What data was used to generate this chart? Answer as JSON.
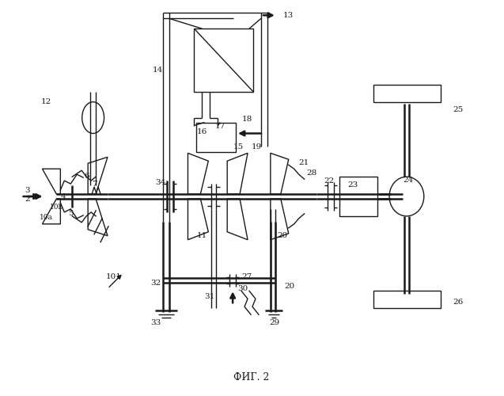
{
  "title": "ФИГ. 2",
  "bg_color": "#ffffff",
  "line_color": "#1a1a1a",
  "lw": 1.0,
  "lw_thick": 1.8,
  "fig_width": 6.37,
  "fig_height": 5.0,
  "dpi": 100
}
